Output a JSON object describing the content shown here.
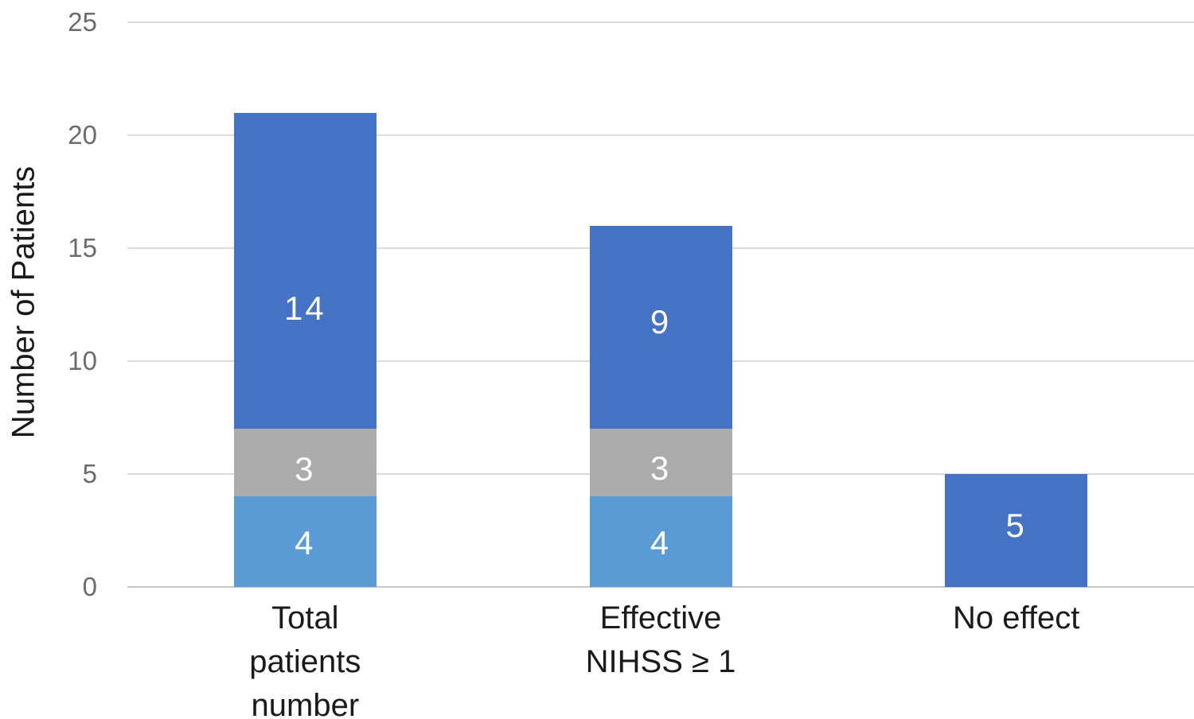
{
  "chart_data": {
    "type": "bar",
    "stacked": true,
    "title": "",
    "xlabel": "",
    "ylabel": "Number of Patients",
    "ylim": [
      0,
      25
    ],
    "yticks": [
      0,
      5,
      10,
      15,
      20,
      25
    ],
    "grid": "horizontal",
    "legend": "none",
    "categories": [
      "Total patients number",
      "Effective NIHSS ≥ 1",
      "No effect"
    ],
    "category_lines": [
      [
        "Total",
        "patients",
        "number"
      ],
      [
        "Effective",
        "NIHSS ≥ 1"
      ],
      [
        "No effect"
      ]
    ],
    "series": [
      {
        "name": "light-blue-segment",
        "color": "#5B9BD5",
        "values": [
          4,
          4,
          null
        ],
        "label_frac": [
          0.52,
          0.52,
          null
        ]
      },
      {
        "name": "gray-segment",
        "color": "#ABABAB",
        "values": [
          3,
          3,
          null
        ],
        "label_frac": [
          0.6,
          0.59,
          null
        ]
      },
      {
        "name": "dark-blue-segment",
        "color": "#4472C4",
        "values": [
          14,
          9,
          5
        ],
        "label_frac": [
          0.62,
          0.475,
          0.46
        ]
      }
    ],
    "bar_totals": [
      21,
      16,
      5
    ]
  },
  "colors": {
    "background": "#FFFFFF",
    "gridline": "#DBDBDB",
    "axis_line": "#C8C8C8",
    "tick_label": "#6B6B6B",
    "category_label": "#1A1A1A",
    "axis_title": "#1A1A1A",
    "data_label": "#FFFFFF"
  }
}
